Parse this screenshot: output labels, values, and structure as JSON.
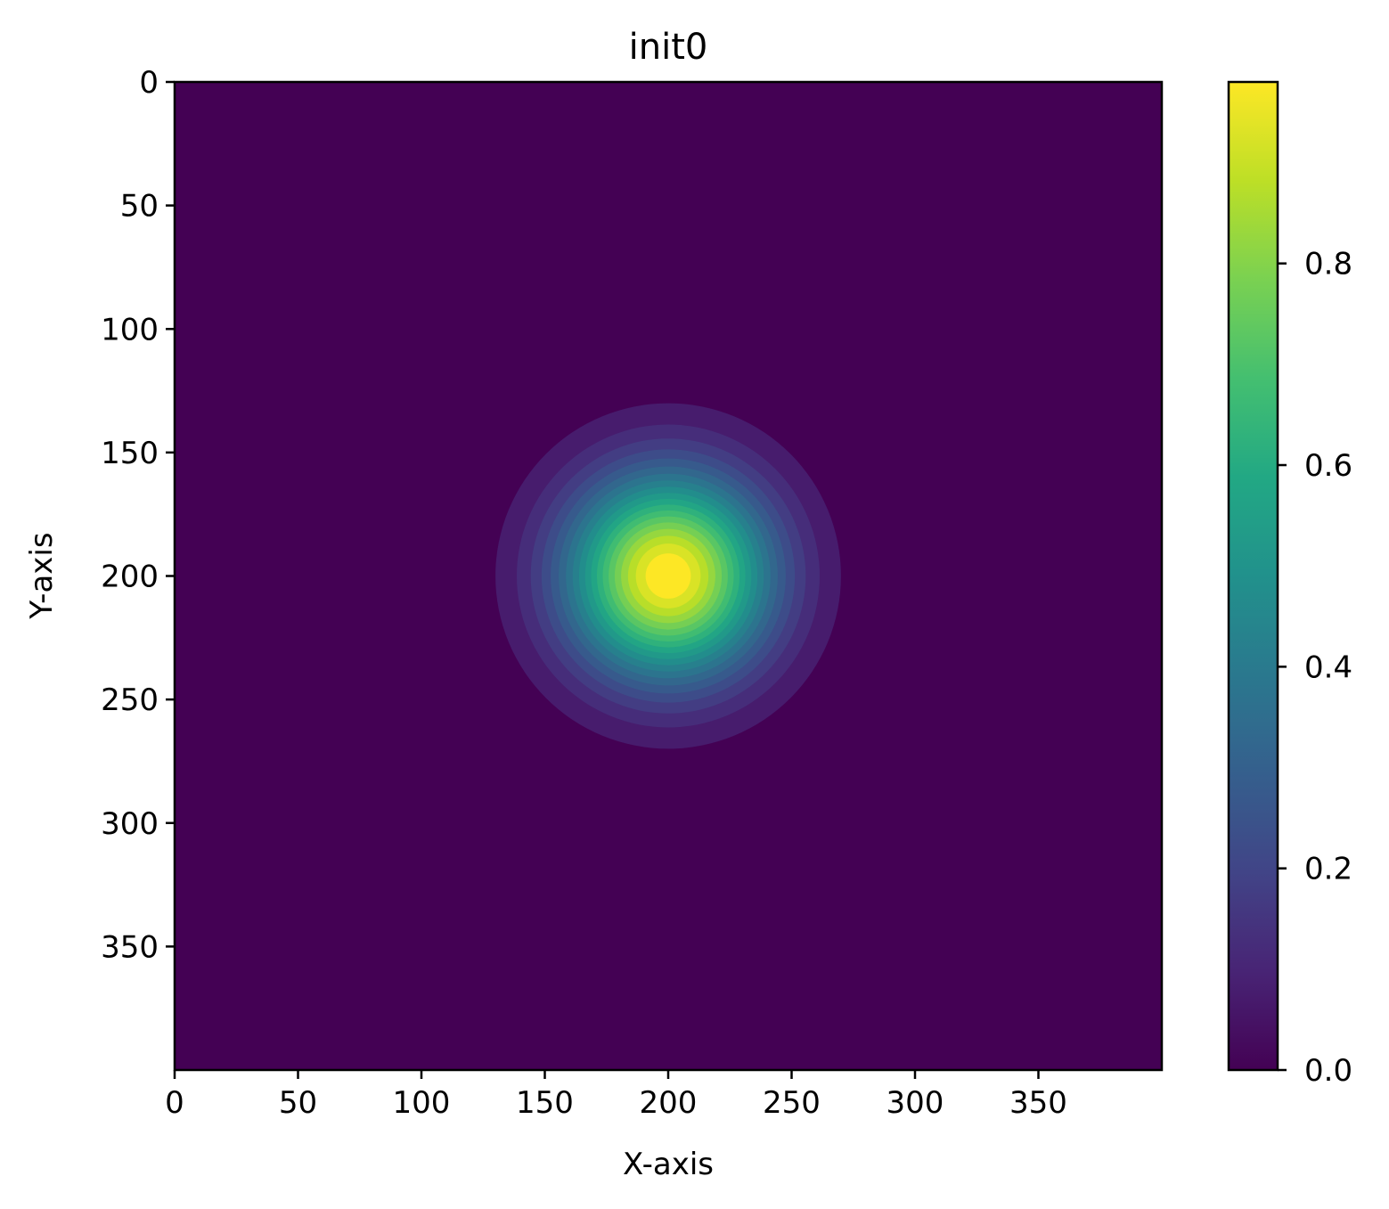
{
  "chart_data": {
    "type": "heatmap",
    "title": "init0",
    "xlabel": "X-axis",
    "ylabel": "Y-axis",
    "xlim": [
      0,
      400
    ],
    "ylim": [
      400,
      0
    ],
    "y_inverted": true,
    "x_ticks": [
      0,
      50,
      100,
      150,
      200,
      250,
      300,
      350
    ],
    "x_tick_labels": [
      "0",
      "50",
      "100",
      "150",
      "200",
      "250",
      "300",
      "350"
    ],
    "y_ticks": [
      0,
      50,
      100,
      150,
      200,
      250,
      300,
      350
    ],
    "y_tick_labels": [
      "0",
      "50",
      "100",
      "150",
      "200",
      "250",
      "300",
      "350"
    ],
    "field": {
      "shape": "gaussian",
      "center": [
        200,
        200
      ],
      "peak": 1.0,
      "background": 0.0,
      "visible_extent_radius": 70
    },
    "contour_levels": [
      0.0,
      0.05,
      0.1,
      0.15,
      0.2,
      0.25,
      0.3,
      0.35,
      0.4,
      0.45,
      0.5,
      0.55,
      0.6,
      0.65,
      0.7,
      0.75,
      0.8,
      0.85,
      0.9,
      0.95
    ],
    "colorbar": {
      "colormap": "viridis",
      "range": [
        0,
        0.98
      ],
      "ticks": [
        0.0,
        0.2,
        0.4,
        0.6,
        0.8
      ],
      "tick_labels": [
        "0.0",
        "0.2",
        "0.4",
        "0.6",
        "0.8"
      ]
    },
    "grid": false
  }
}
